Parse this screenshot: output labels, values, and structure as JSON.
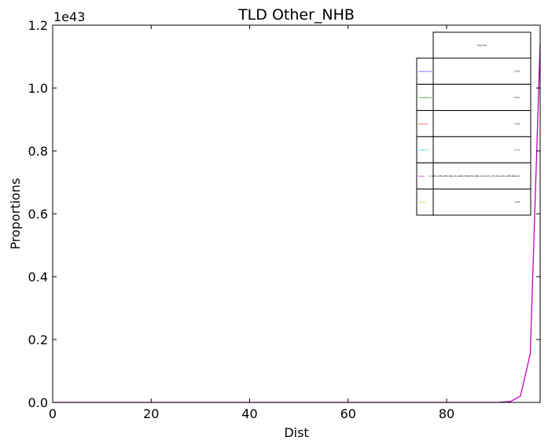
{
  "chart_data": {
    "type": "line",
    "title": "TLD Other_NHB",
    "xlabel": "Dist",
    "ylabel": "Proportions",
    "offset_text": "1e43",
    "xlim": [
      0,
      99
    ],
    "ylim": [
      0,
      1.2
    ],
    "x_ticks": [
      0,
      20,
      40,
      60,
      80
    ],
    "y_ticks": [
      0.0,
      0.2,
      0.4,
      0.6,
      0.8,
      1.0,
      1.2
    ],
    "series": [
      {
        "name": "taxes",
        "color": "#bf00bf",
        "x": [
          0,
          10,
          20,
          30,
          40,
          50,
          60,
          70,
          80,
          90,
          93,
          95,
          97,
          99
        ],
        "y": [
          0,
          0,
          0,
          0,
          0,
          0,
          0,
          0,
          0,
          0,
          0.003,
          0.02,
          0.155,
          1.14
        ]
      }
    ],
    "legend_table": {
      "header": "Avg Dist",
      "rows": [
        {
          "label": "capsurance",
          "color": "#0000ff",
          "value": "0.00"
        },
        {
          "label": "sweetgrass",
          "color": "#008000",
          "value": "0.07"
        },
        {
          "label": "petrolet",
          "color": "#ff0000",
          "value": "0.06"
        },
        {
          "label": "hogsnort",
          "color": "#00bfbf",
          "value": "0.11"
        },
        {
          "label": "taxes",
          "color": "#bf00bf",
          "value": "1.50E+185,185,186,214,682,799,852,685,213,311,179,151,201,283,984.00"
        },
        {
          "label": "yellow",
          "color": "#bfbf00",
          "value": "7.85"
        }
      ]
    }
  }
}
